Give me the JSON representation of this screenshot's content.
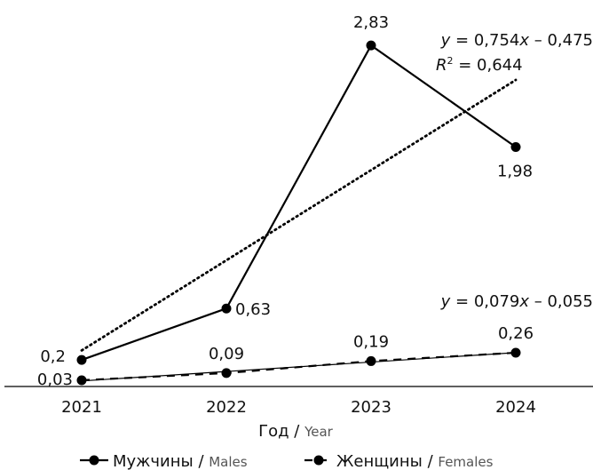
{
  "chart_data": {
    "type": "line",
    "categories": [
      "2021",
      "2022",
      "2023",
      "2024"
    ],
    "x_numeric": [
      1,
      2,
      3,
      4
    ],
    "ylim": [
      0,
      3.05
    ],
    "grid": false,
    "legend_position": "bottom",
    "xlabel": {
      "main": "Год",
      "sep": " / ",
      "sub": "Year"
    },
    "ylabel": "",
    "series": [
      {
        "name": "Мужчины",
        "name_sub": "Males",
        "values": [
          0.2,
          0.63,
          2.83,
          1.98
        ],
        "labels": [
          "0,2",
          "0,63",
          "2,83",
          "1,98"
        ],
        "color": "#000000",
        "style": "solid"
      },
      {
        "name": "Женщины",
        "name_sub": "Females",
        "values": [
          0.03,
          0.09,
          0.19,
          0.26
        ],
        "labels": [
          "0,03",
          "0,09",
          "0,19",
          "0,26"
        ],
        "color": "#000000",
        "style": "dashed"
      }
    ],
    "trendlines": [
      {
        "series": "Мужчины",
        "slope": 0.754,
        "intercept": -0.475,
        "style": "dotted",
        "equation_parts": [
          "y",
          " = 0,754",
          "x",
          " – 0,475"
        ],
        "r2_parts": [
          "R",
          "2",
          " = 0,644"
        ]
      },
      {
        "series": "Женщины",
        "slope": 0.079,
        "intercept": -0.055,
        "style": "solid-thin",
        "equation_parts": [
          "y",
          " = 0,079",
          "x",
          " – 0,055"
        ]
      }
    ]
  }
}
